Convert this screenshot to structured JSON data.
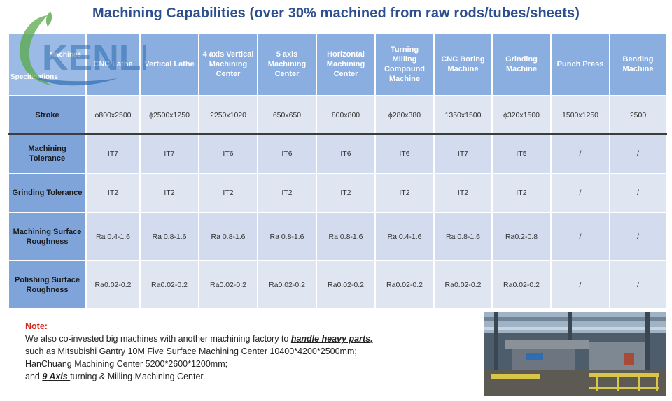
{
  "title": {
    "lead": "Machining Capabilities (",
    "mid": "over 30% machined from raw rods/tubes/sheets",
    "tail": ")"
  },
  "logo": {
    "text": "KENLI"
  },
  "table": {
    "corner_top": "Machines",
    "corner_bottom": "Specifications",
    "columns": [
      "CNC Lathe",
      "Vertical Lathe",
      "4 axis Vertical Machining Center",
      "5 axis Machining Center",
      "Horizontal Machining Center",
      "Turning Milling Compound Machine",
      "CNC Boring Machine",
      "Grinding Machine",
      "Punch Press",
      "Bending Machine"
    ],
    "rows": [
      {
        "label": "Stroke",
        "cells": [
          "ϕ800x2500",
          "ϕ2500x1250",
          "2250x1020",
          "650x650",
          "800x800",
          "ϕ280x380",
          "1350x1500",
          "ϕ320x1500",
          "1500x1250",
          "2500"
        ]
      },
      {
        "label": "Machining Tolerance",
        "cells": [
          "IT7",
          "IT7",
          "IT6",
          "IT6",
          "IT6",
          "IT6",
          "IT7",
          "IT5",
          "/",
          "/"
        ]
      },
      {
        "label": "Grinding Tolerance",
        "cells": [
          "IT2",
          "IT2",
          "IT2",
          "IT2",
          "IT2",
          "IT2",
          "IT2",
          "IT2",
          "/",
          "/"
        ]
      },
      {
        "label": "Machining Surface Roughness",
        "cells": [
          "Ra 0.4-1.6",
          "Ra 0.8-1.6",
          "Ra 0.8-1.6",
          "Ra 0.8-1.6",
          "Ra 0.8-1.6",
          "Ra 0.4-1.6",
          "Ra 0.8-1.6",
          "Ra0.2-0.8",
          "/",
          "/"
        ]
      },
      {
        "label": "Polishing Surface Roughness",
        "cells": [
          "Ra0.02-0.2",
          "Ra0.02-0.2",
          "Ra0.02-0.2",
          "Ra0.02-0.2",
          "Ra0.02-0.2",
          "Ra0.02-0.2",
          "Ra0.02-0.2",
          "Ra0.02-0.2",
          "/",
          "/"
        ]
      }
    ]
  },
  "note": {
    "heading": "Note:",
    "line1_pre": "We also co-invested big machines with another machining factory to ",
    "line1_emph": "handle heavy parts,",
    "line2": "such as Mitsubishi Gantry 10M Five Surface Machining Center 10400*4200*2500mm;",
    "line3": "HanChuang Machining Center 5200*2600*1200mm;",
    "line4_pre": "and ",
    "line4_emph": "9 Axis ",
    "line4_post": "turning & Milling Machining Center."
  },
  "colors": {
    "title_blue": "#2e4f8f",
    "header_blue": "#8aaee0",
    "row_label_blue": "#7fa4da",
    "note_red": "#d42a1e",
    "logo_green": "#5aa84a",
    "logo_blue": "#2f6db0"
  }
}
